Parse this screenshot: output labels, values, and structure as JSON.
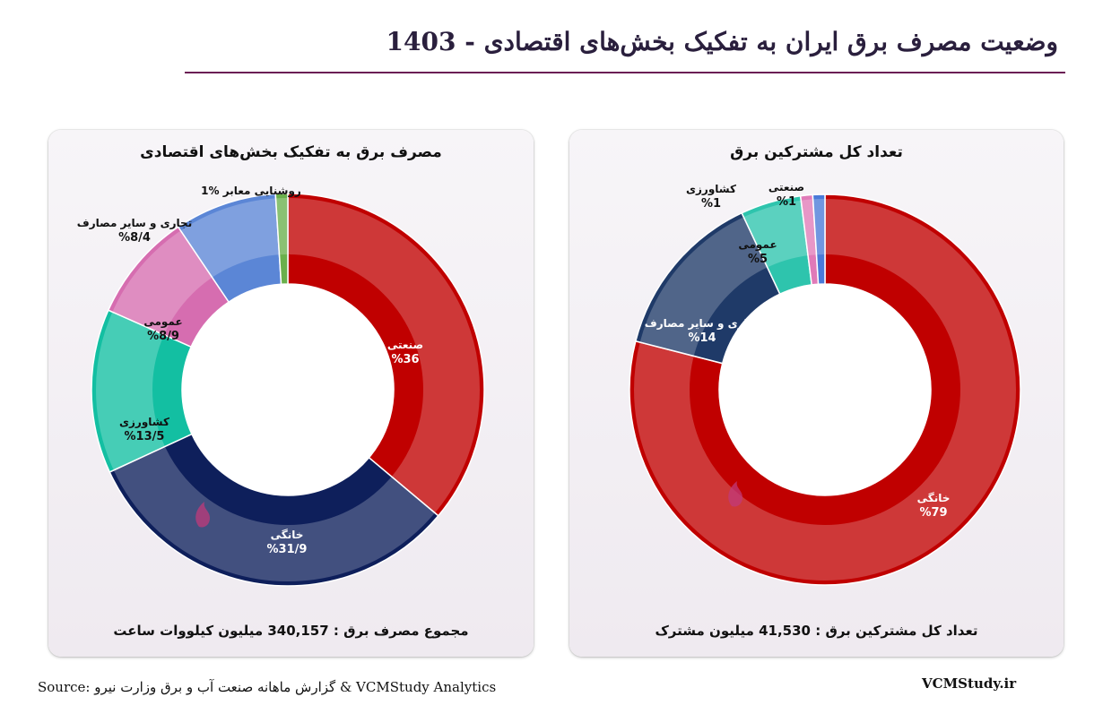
{
  "page": {
    "title": "وضعیت مصرف برق  ایران به تفکیک بخش‌های اقتصادی - 1403",
    "source": "Source: گزارش ماهانه صنعت آب و برق وزارت نیرو & VCMStudy Analytics",
    "site": "VCMStudy.ir"
  },
  "chart_data": [
    {
      "type": "pie",
      "title": "مصرف برق به تفکیک بخش‌های اقتصادی",
      "footer": "مجموع مصرف برق : 340,157 میلیون کیلووات ساعت",
      "slices": [
        {
          "label": "صنعتی",
          "value": 36,
          "value_label": "%36",
          "color": "#c00000"
        },
        {
          "label": "خانگی",
          "value": 31.9,
          "value_label": "%31/9",
          "color": "#0e1f5b"
        },
        {
          "label": "کشاورزی",
          "value": 13.5,
          "value_label": "%13/5",
          "color": "#13bfa2"
        },
        {
          "label": "عمومی",
          "value": 8.9,
          "value_label": "%8/9",
          "color": "#d66db0"
        },
        {
          "label": "تجاری و سایر مصارف",
          "value": 8.4,
          "value_label": "%8/4",
          "color": "#5b86d6"
        },
        {
          "label": "روشنایی معابر",
          "value": 1,
          "value_label": "%1",
          "color": "#6ab04c"
        }
      ]
    },
    {
      "type": "pie",
      "title": "تعداد کل مشترکین برق",
      "footer": "تعداد کل مشترکین برق : 41,530 میلیون مشترک",
      "slices": [
        {
          "label": "خانگی",
          "value": 79,
          "value_label": "%79",
          "color": "#c00000"
        },
        {
          "label": "تجاری و سایر مصارف",
          "value": 14,
          "value_label": "%14",
          "color": "#1f3a68"
        },
        {
          "label": "عمومی",
          "value": 5,
          "value_label": "%5",
          "color": "#2ec4ad"
        },
        {
          "label": "کشاورزی",
          "value": 1,
          "value_label": "%1",
          "color": "#e07ab8"
        },
        {
          "label": "صنعتی",
          "value": 1,
          "value_label": "%1",
          "color": "#4a7ad8"
        }
      ]
    }
  ]
}
